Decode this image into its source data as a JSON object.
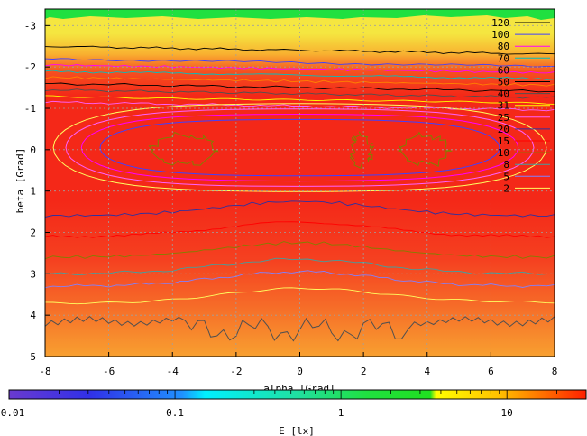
{
  "chart_data": {
    "type": "heatmap",
    "title": "",
    "xlabel": "alpha [Grad]",
    "ylabel": "beta [Grad]",
    "xlim": [
      -8,
      8
    ],
    "ylim": [
      -3.4,
      5
    ],
    "y_reversed": true,
    "x_ticks": [
      "-8",
      "-6",
      "-4",
      "-2",
      "0",
      "2",
      "4",
      "6",
      "8"
    ],
    "y_ticks": [
      "-3",
      "-2",
      "-1",
      "0",
      "1",
      "2",
      "3",
      "4",
      "5"
    ],
    "grid": true,
    "colorbar": {
      "label": "E [lx]",
      "scale": "log",
      "range": [
        0.01,
        30
      ],
      "ticks": [
        "0.01",
        "0.1",
        "1",
        "10"
      ]
    },
    "contours": {
      "legend_position": "top-right",
      "levels": [
        {
          "label": "120",
          "color": "#000000"
        },
        {
          "label": "100",
          "color": "#4040ff"
        },
        {
          "label": "80",
          "color": "#ff00ff"
        },
        {
          "label": "70",
          "color": "#00c0c0"
        },
        {
          "label": "60",
          "color": "#ff8000"
        },
        {
          "label": "50",
          "color": "#000000"
        },
        {
          "label": "40",
          "color": "#505050"
        },
        {
          "label": "31",
          "color": "#ffff00"
        },
        {
          "label": "25",
          "color": "#ff60ff"
        },
        {
          "label": "20",
          "color": "#3030a0"
        },
        {
          "label": "15",
          "color": "#ff0000"
        },
        {
          "label": "10",
          "color": "#808000"
        },
        {
          "label": "8",
          "color": "#40a0a0"
        },
        {
          "label": "5",
          "color": "#8080ff"
        },
        {
          "label": "2",
          "color": "#ffff60"
        }
      ]
    }
  }
}
